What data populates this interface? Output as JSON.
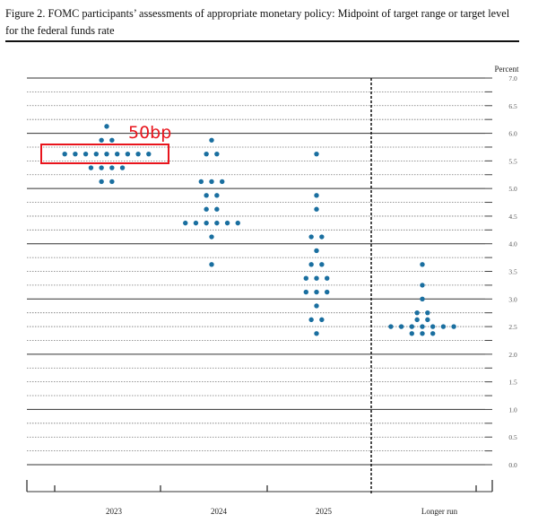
{
  "figure": {
    "title": "Figure 2.  FOMC participants’ assessments of appropriate monetary policy:  Midpoint of target range or target level for the federal funds rate",
    "annotation": "50bp",
    "annotation_color": "#e8141c"
  },
  "chart_data": {
    "type": "scatter",
    "subtype": "dot plot",
    "title": "Figure 2.  FOMC participants’ assessments of appropriate monetary policy:  Midpoint of target range or target level for the federal funds rate",
    "ylabel": "Percent",
    "ylim": [
      0,
      7
    ],
    "yticks": [
      "0.0",
      "0.5",
      "1.0",
      "1.5",
      "2.0",
      "2.5",
      "3.0",
      "3.5",
      "4.0",
      "4.5",
      "5.0",
      "5.5",
      "6.0",
      "6.5",
      "7.0"
    ],
    "categories": [
      "2023",
      "2024",
      "2025",
      "Longer run"
    ],
    "grid": true,
    "dot_color": "#1a6fa0",
    "columns": [
      {
        "category": "2023",
        "dots": [
          {
            "rate": 6.125,
            "count": 1
          },
          {
            "rate": 5.875,
            "count": 2
          },
          {
            "rate": 5.625,
            "count": 9
          },
          {
            "rate": 5.375,
            "count": 4
          },
          {
            "rate": 5.125,
            "count": 2
          }
        ]
      },
      {
        "category": "2024",
        "dots": [
          {
            "rate": 5.875,
            "count": 1
          },
          {
            "rate": 5.625,
            "count": 2
          },
          {
            "rate": 5.125,
            "count": 3
          },
          {
            "rate": 4.875,
            "count": 2
          },
          {
            "rate": 4.625,
            "count": 2
          },
          {
            "rate": 4.375,
            "count": 6
          },
          {
            "rate": 4.125,
            "count": 1
          },
          {
            "rate": 3.625,
            "count": 1
          }
        ]
      },
      {
        "category": "2025",
        "dots": [
          {
            "rate": 5.625,
            "count": 1
          },
          {
            "rate": 4.875,
            "count": 1
          },
          {
            "rate": 4.625,
            "count": 1
          },
          {
            "rate": 4.125,
            "count": 2
          },
          {
            "rate": 3.875,
            "count": 1
          },
          {
            "rate": 3.625,
            "count": 2
          },
          {
            "rate": 3.375,
            "count": 3
          },
          {
            "rate": 3.125,
            "count": 3
          },
          {
            "rate": 2.875,
            "count": 1
          },
          {
            "rate": 2.625,
            "count": 2
          },
          {
            "rate": 2.375,
            "count": 1
          }
        ]
      },
      {
        "category": "Longer run",
        "dots": [
          {
            "rate": 3.625,
            "count": 1
          },
          {
            "rate": 3.25,
            "count": 1
          },
          {
            "rate": 3.0,
            "count": 1
          },
          {
            "rate": 2.75,
            "count": 2
          },
          {
            "rate": 2.625,
            "count": 2
          },
          {
            "rate": 2.5,
            "count": 7
          },
          {
            "rate": 2.375,
            "count": 3
          }
        ]
      }
    ],
    "highlight": {
      "category": "2023",
      "rate": 5.625,
      "label": "50bp"
    }
  }
}
